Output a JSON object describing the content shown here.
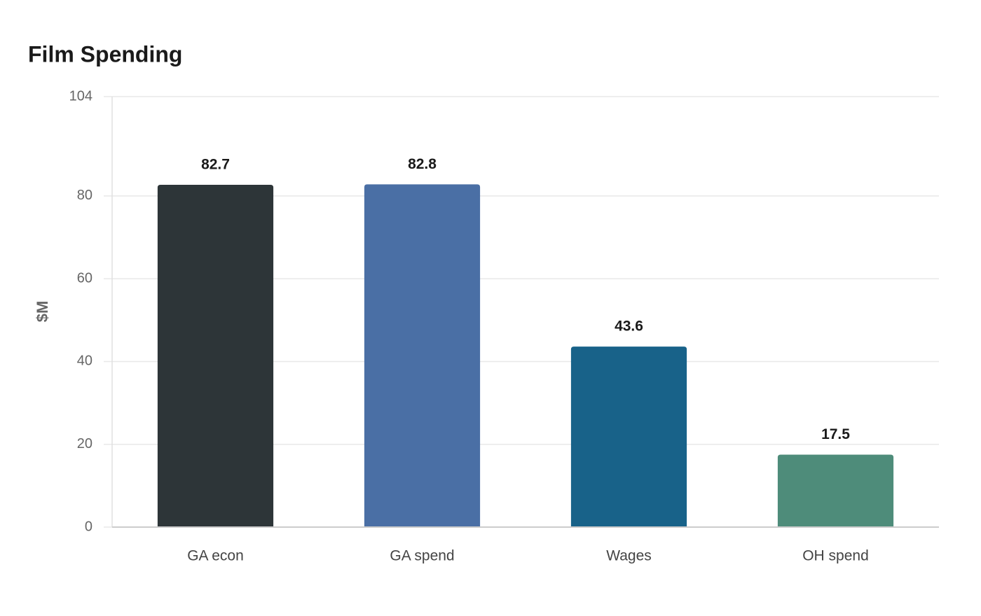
{
  "chart_data": {
    "type": "bar",
    "title": "Film Spending",
    "y_label": "$M",
    "categories": [
      "GA econ",
      "GA spend",
      "Wages",
      "OH spend"
    ],
    "values": [
      82.7,
      82.8,
      43.6,
      17.5
    ],
    "colors": [
      "#2d3538",
      "#4a6fa5",
      "#186289",
      "#4e8c7a"
    ],
    "ylim": [
      0,
      104
    ],
    "yticks": [
      0,
      20,
      40,
      60,
      80,
      104
    ],
    "grid": true
  }
}
